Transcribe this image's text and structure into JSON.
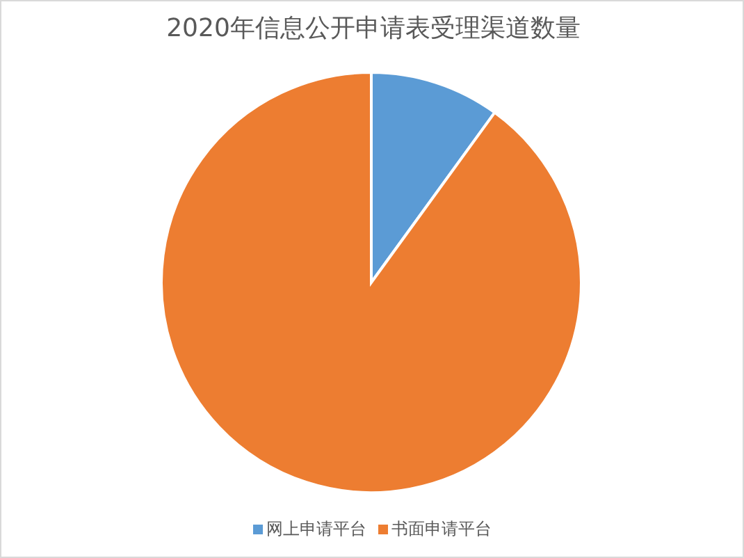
{
  "chart_data": {
    "type": "pie",
    "title": "2020年信息公开申请表受理渠道数量",
    "categories": [
      "网上申请平台",
      "书面申请平台"
    ],
    "values": [
      10,
      90
    ],
    "colors": [
      "#5b9bd5",
      "#ed7d31"
    ],
    "legend": "bottom"
  }
}
